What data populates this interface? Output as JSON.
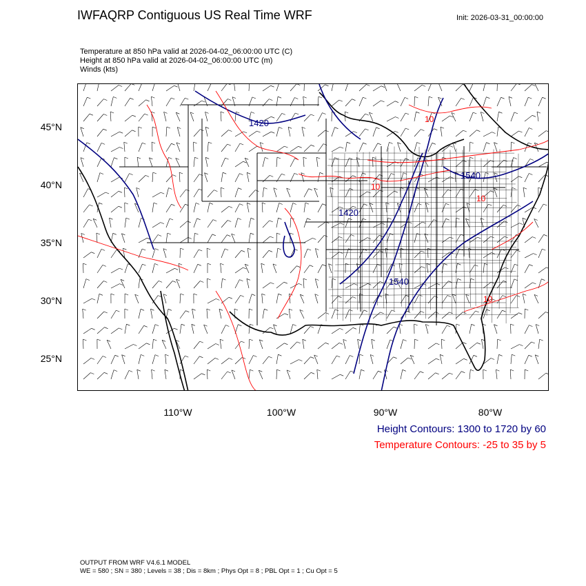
{
  "header": {
    "title": "IWFAQRP Contiguous US Real Time WRF",
    "init": "Init: 2026-03-31_00:00:00"
  },
  "fields": [
    "Temperature at 850 hPa valid at 2026-04-02_06:00:00 UTC   (C)",
    "Height at 850 hPa valid at 2026-04-02_06:00:00 UTC   (m)",
    "Winds   (kts)"
  ],
  "axes": {
    "lat_labels": [
      "45°N",
      "40°N",
      "35°N",
      "30°N",
      "25°N"
    ],
    "lon_labels": [
      "110°W",
      "100°W",
      "90°W",
      "80°W"
    ]
  },
  "contour_labels": {
    "height": [
      "1420",
      "1540",
      "1420",
      "1540"
    ],
    "temperature": [
      "10",
      "10",
      "10",
      "10"
    ]
  },
  "legend": {
    "height": "Height Contours: 1300 to 1720 by 60",
    "temperature": "Temperature Contours: -25 to 35 by 5"
  },
  "footer": {
    "line1": "OUTPUT FROM WRF V4.6.1 MODEL",
    "line2": "WE = 580 ; SN = 380 ; Levels = 38 ; Dis = 8km ; Phys Opt = 8 ; PBL Opt = 1 ; Cu Opt = 5"
  },
  "colors": {
    "height": "#000080",
    "temperature": "#ff0000",
    "borders": "#000000"
  }
}
